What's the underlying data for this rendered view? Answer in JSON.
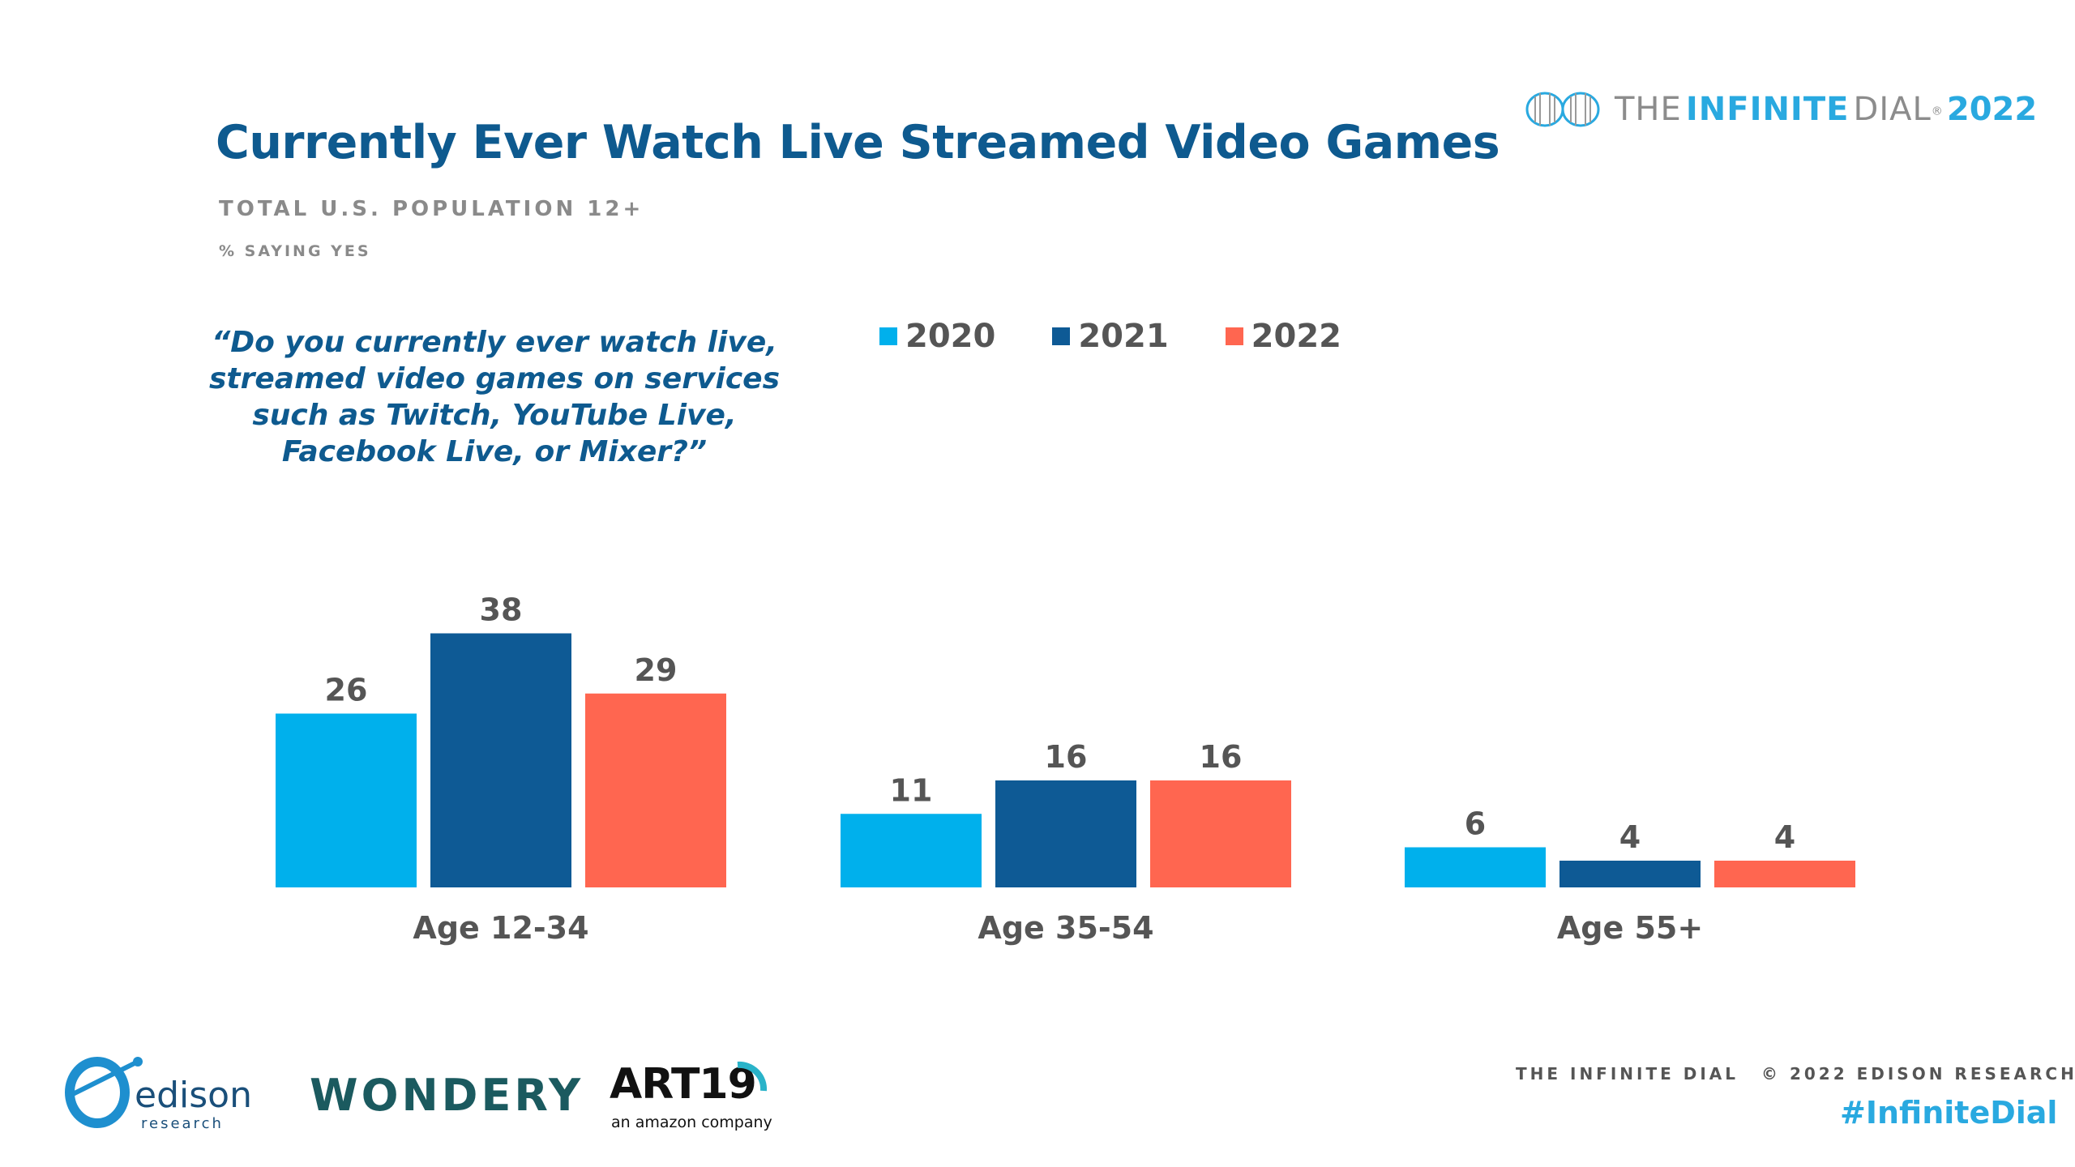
{
  "header": {
    "title": "Currently Ever Watch Live Streamed Video Games",
    "subtitle": "TOTAL U.S. POPULATION 12+",
    "note": "% SAYING YES",
    "question": "“Do you currently ever watch live, streamed video games on services such as Twitch, YouTube Live, Facebook Live, or Mixer?”"
  },
  "brand": {
    "the": "THE",
    "infinite": "INFINITE",
    "dial": "DIAL",
    "registered": "®",
    "year": "2022"
  },
  "footer": {
    "left": "THE INFINITE DIAL",
    "right": "© 2022 EDISON RESEARCH",
    "hashtag": "#InfiniteDial"
  },
  "sponsors": {
    "edison": "edison",
    "edison_sub": "research",
    "wondery": "WONDERY",
    "art19": "ART19",
    "art19_sub": "an amazon company"
  },
  "colors": {
    "2020": "#00b0ec",
    "2021": "#0e5a95",
    "2022": "#ff6650",
    "title": "#0e5a8f",
    "accent": "#29a9e0"
  },
  "chart_data": {
    "type": "bar",
    "categories": [
      "Age 12-34",
      "Age 35-54",
      "Age 55+"
    ],
    "series": [
      {
        "name": "2020",
        "values": [
          26,
          11,
          6
        ]
      },
      {
        "name": "2021",
        "values": [
          38,
          16,
          4
        ]
      },
      {
        "name": "2022",
        "values": [
          29,
          16,
          4
        ]
      }
    ],
    "legend_position": "top",
    "grid": false,
    "ylim": [
      0,
      40
    ]
  }
}
